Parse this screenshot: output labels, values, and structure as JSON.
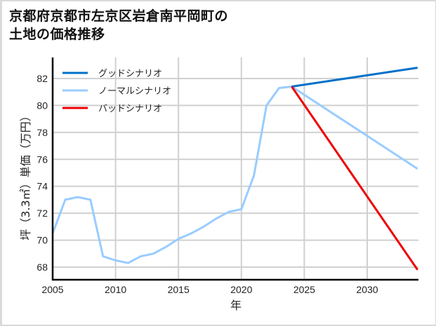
{
  "title_line1": "京都府京都市左京区岩倉南平岡町の",
  "title_line2": "土地の価格推移",
  "chart_data": {
    "type": "line",
    "title": "京都府京都市左京区岩倉南平岡町の土地の価格推移",
    "xlabel": "年",
    "ylabel": "坪（3.3㎡）単価（万円）",
    "xlim": [
      2005,
      2034
    ],
    "ylim": [
      67,
      83.5
    ],
    "xticks": [
      2005,
      2010,
      2015,
      2020,
      2025,
      2030
    ],
    "yticks": [
      68,
      70,
      72,
      74,
      76,
      78,
      80,
      82
    ],
    "grid": true,
    "legend_position": "upper left",
    "series": [
      {
        "name": "グッドシナリオ",
        "color": "#0070c9",
        "x": [
          2024,
          2034
        ],
        "values": [
          81.4,
          82.8
        ]
      },
      {
        "name": "ノーマルシナリオ",
        "color": "#99ccff",
        "x": [
          2005,
          2006,
          2007,
          2008,
          2009,
          2010,
          2011,
          2012,
          2013,
          2014,
          2015,
          2016,
          2017,
          2018,
          2019,
          2020,
          2021,
          2022,
          2023,
          2024,
          2034
        ],
        "values": [
          70.5,
          73.0,
          73.2,
          73.0,
          68.8,
          68.5,
          68.3,
          68.8,
          69.0,
          69.5,
          70.1,
          70.5,
          71.0,
          71.6,
          72.1,
          72.3,
          74.8,
          80.0,
          81.3,
          81.4,
          75.3
        ]
      },
      {
        "name": "バッドシナリオ",
        "color": "#ee0000",
        "x": [
          2024,
          2034
        ],
        "values": [
          81.4,
          67.8
        ]
      }
    ]
  }
}
